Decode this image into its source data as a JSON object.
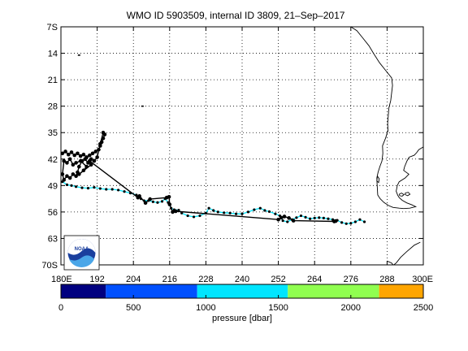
{
  "title": "WMO ID 5903509, internal ID 3809, 21–Sep–2017",
  "map": {
    "lon_range": [
      180,
      300
    ],
    "lat_range": [
      -70,
      -7
    ],
    "lat_ticks": [
      {
        "value": -7,
        "label": "7S"
      },
      {
        "value": -14,
        "label": "14"
      },
      {
        "value": -21,
        "label": "21"
      },
      {
        "value": -28,
        "label": "28"
      },
      {
        "value": -35,
        "label": "35"
      },
      {
        "value": -42,
        "label": "42"
      },
      {
        "value": -49,
        "label": "49"
      },
      {
        "value": -56,
        "label": "56"
      },
      {
        "value": -63,
        "label": "63"
      },
      {
        "value": -70,
        "label": "70S"
      }
    ],
    "lon_ticks": [
      {
        "value": 180,
        "label": "180E"
      },
      {
        "value": 192,
        "label": "192"
      },
      {
        "value": 204,
        "label": "204"
      },
      {
        "value": 216,
        "label": "216"
      },
      {
        "value": 228,
        "label": "228"
      },
      {
        "value": 240,
        "label": "240"
      },
      {
        "value": 252,
        "label": "252"
      },
      {
        "value": 264,
        "label": "264"
      },
      {
        "value": 276,
        "label": "276"
      },
      {
        "value": 288,
        "label": "288"
      },
      {
        "value": 300,
        "label": "300E"
      }
    ],
    "grid": "dotted",
    "logo": {
      "text": "NOAA",
      "placement": "bottom-left"
    }
  },
  "colorbar": {
    "label": "pressure [dbar]",
    "ticks": [
      {
        "value": 0,
        "label": "0"
      },
      {
        "value": 500,
        "label": "500"
      },
      {
        "value": 1000,
        "label": "1000"
      },
      {
        "value": 1500,
        "label": "1500"
      },
      {
        "value": 2000,
        "label": "2000"
      },
      {
        "value": 2500,
        "label": "2500"
      }
    ],
    "range": [
      0,
      2500
    ],
    "bands": [
      {
        "from": 0,
        "to": 310,
        "color": "#000080"
      },
      {
        "from": 310,
        "to": 940,
        "color": "#0050ff"
      },
      {
        "from": 940,
        "to": 1565,
        "color": "#00e5ff"
      },
      {
        "from": 1565,
        "to": 2195,
        "color": "#90ff50"
      },
      {
        "from": 2195,
        "to": 2500,
        "color": "#ffa500"
      }
    ]
  },
  "trajectory": {
    "line_color": "#00e5ff",
    "marker_color": "#000000",
    "points": [
      [
        180.5,
        -48.0
      ],
      [
        182.0,
        -48.8
      ],
      [
        183.5,
        -49.0
      ],
      [
        185.0,
        -49.3
      ],
      [
        187.0,
        -49.6
      ],
      [
        189.0,
        -49.7
      ],
      [
        191.0,
        -49.5
      ],
      [
        193.0,
        -49.8
      ],
      [
        195.0,
        -50.0
      ],
      [
        197.0,
        -50.0
      ],
      [
        199.0,
        -50.2
      ],
      [
        201.0,
        -50.6
      ],
      [
        203.0,
        -51.0
      ],
      [
        205.0,
        -51.5
      ],
      [
        206.5,
        -52.5
      ],
      [
        207.5,
        -53.0
      ],
      [
        209.0,
        -53.0
      ],
      [
        210.5,
        -53.3
      ],
      [
        212.0,
        -53.5
      ],
      [
        213.5,
        -53.2
      ],
      [
        214.5,
        -52.5
      ],
      [
        215.5,
        -53.5
      ],
      [
        216.5,
        -55.0
      ],
      [
        217.5,
        -55.4
      ],
      [
        219.0,
        -55.5
      ],
      [
        220.0,
        -56.3
      ],
      [
        222.0,
        -57.0
      ],
      [
        224.0,
        -57.3
      ],
      [
        226.0,
        -57.0
      ],
      [
        228.0,
        -56.3
      ],
      [
        229.0,
        -55.0
      ],
      [
        230.5,
        -55.6
      ],
      [
        232.0,
        -56.0
      ],
      [
        234.0,
        -56.2
      ],
      [
        236.0,
        -56.3
      ],
      [
        238.0,
        -56.5
      ],
      [
        240.0,
        -56.5
      ],
      [
        242.0,
        -56.0
      ],
      [
        244.0,
        -55.4
      ],
      [
        246.0,
        -55.0
      ],
      [
        247.5,
        -55.6
      ],
      [
        249.0,
        -55.9
      ],
      [
        251.0,
        -56.5
      ],
      [
        252.5,
        -57.0
      ],
      [
        253.5,
        -58.3
      ],
      [
        255.0,
        -58.6
      ],
      [
        256.5,
        -58.0
      ],
      [
        258.0,
        -57.5
      ],
      [
        259.5,
        -57.0
      ],
      [
        261.0,
        -57.4
      ],
      [
        262.5,
        -57.8
      ],
      [
        264.0,
        -57.6
      ],
      [
        265.5,
        -57.5
      ],
      [
        267.0,
        -57.6
      ],
      [
        268.5,
        -57.8
      ],
      [
        270.0,
        -58.0
      ],
      [
        271.5,
        -58.2
      ],
      [
        273.0,
        -58.8
      ],
      [
        274.5,
        -59.1
      ],
      [
        276.0,
        -59.0
      ],
      [
        277.5,
        -58.6
      ],
      [
        279.0,
        -58.0
      ],
      [
        280.5,
        -58.6
      ]
    ],
    "cluster_points": [
      [
        180.5,
        -40.5
      ],
      [
        181.5,
        -40.0
      ],
      [
        182.5,
        -40.8
      ],
      [
        183.5,
        -40.2
      ],
      [
        184.5,
        -41.0
      ],
      [
        185.5,
        -40.5
      ],
      [
        186.5,
        -41.2
      ],
      [
        187.5,
        -40.8
      ],
      [
        188.5,
        -41.5
      ],
      [
        189.5,
        -41.0
      ],
      [
        190.5,
        -40.5
      ],
      [
        191.5,
        -40.0
      ],
      [
        192.5,
        -39.5
      ],
      [
        193.0,
        -38.5
      ],
      [
        193.5,
        -37.5
      ],
      [
        194.0,
        -36.5
      ],
      [
        194.5,
        -35.5
      ],
      [
        194.0,
        -35.0
      ],
      [
        193.0,
        -38.0
      ],
      [
        192.0,
        -41.5
      ],
      [
        191.0,
        -42.5
      ],
      [
        190.0,
        -42.0
      ],
      [
        189.0,
        -43.0
      ],
      [
        188.0,
        -42.0
      ],
      [
        187.0,
        -42.5
      ],
      [
        186.0,
        -44.0
      ],
      [
        185.5,
        -45.5
      ],
      [
        185.0,
        -46.5
      ],
      [
        184.0,
        -46.0
      ],
      [
        183.0,
        -47.0
      ],
      [
        182.0,
        -46.5
      ],
      [
        181.0,
        -47.5
      ],
      [
        180.5,
        -46.0
      ],
      [
        181.0,
        -42.5
      ],
      [
        182.0,
        -43.0
      ],
      [
        183.0,
        -42.0
      ],
      [
        184.0,
        -43.5
      ],
      [
        185.0,
        -43.0
      ],
      [
        186.5,
        -42.5
      ],
      [
        188.5,
        -44.0
      ],
      [
        187.5,
        -45.0
      ],
      [
        186.0,
        -46.0
      ],
      [
        190.0,
        -43.5
      ],
      [
        189.5,
        -42.5
      ],
      [
        205.5,
        -52.2
      ],
      [
        206.0,
        -51.8
      ],
      [
        208.0,
        -53.6
      ],
      [
        209.5,
        -52.6
      ],
      [
        215.0,
        -52.2
      ],
      [
        215.8,
        -52.0
      ],
      [
        216.0,
        -54.0
      ],
      [
        217.0,
        -56.0
      ],
      [
        218.0,
        -55.8
      ],
      [
        252.0,
        -58.0
      ],
      [
        253.0,
        -57.5
      ],
      [
        254.0,
        -57.2
      ],
      [
        255.5,
        -57.6
      ],
      [
        257.0,
        -58.3
      ],
      [
        270.5,
        -58.5
      ],
      [
        271.0,
        -58.4
      ]
    ],
    "isolated_points": [
      [
        186.0,
        -14.5
      ],
      [
        207.0,
        -28.0
      ]
    ]
  },
  "coast": [
    [
      [
        276.0,
        -7.0
      ],
      [
        278.0,
        -8.0
      ],
      [
        280.0,
        -10.0
      ],
      [
        282.0,
        -12.0
      ],
      [
        283.5,
        -14.0
      ],
      [
        285.5,
        -16.5
      ],
      [
        287.5,
        -18.5
      ],
      [
        289.5,
        -20.5
      ],
      [
        289.8,
        -22.5
      ],
      [
        289.5,
        -24.5
      ],
      [
        289.2,
        -26.5
      ],
      [
        288.6,
        -28.5
      ],
      [
        288.4,
        -30.5
      ],
      [
        288.2,
        -32.5
      ],
      [
        288.3,
        -34.5
      ],
      [
        287.5,
        -36.5
      ],
      [
        286.5,
        -38.5
      ],
      [
        286.6,
        -40.5
      ],
      [
        286.3,
        -42.5
      ],
      [
        285.6,
        -44.0
      ],
      [
        285.0,
        -45.5
      ],
      [
        284.6,
        -47.0
      ],
      [
        284.7,
        -48.5
      ],
      [
        284.8,
        -50.0
      ],
      [
        284.9,
        -51.5
      ],
      [
        285.7,
        -52.5
      ],
      [
        287.0,
        -53.5
      ],
      [
        288.5,
        -54.3
      ],
      [
        290.0,
        -54.8
      ],
      [
        292.0,
        -55.0
      ],
      [
        293.5,
        -55.1
      ],
      [
        295.5,
        -55.0
      ],
      [
        297.5,
        -54.6
      ],
      [
        296.2,
        -54.1
      ],
      [
        294.5,
        -53.6
      ],
      [
        293.0,
        -52.9
      ],
      [
        292.0,
        -52.2
      ],
      [
        291.5,
        -51.5
      ],
      [
        291.0,
        -50.5
      ],
      [
        291.4,
        -49.0
      ],
      [
        292.0,
        -48.0
      ],
      [
        294.0,
        -47.0
      ],
      [
        295.2,
        -46.0
      ],
      [
        293.5,
        -45.0
      ],
      [
        293.8,
        -44.0
      ],
      [
        294.6,
        -42.5
      ],
      [
        295.3,
        -41.5
      ],
      [
        297.0,
        -41.0
      ],
      [
        297.8,
        -40.3
      ],
      [
        298.5,
        -39.5
      ],
      [
        300.0,
        -38.8
      ]
    ],
    [
      [
        292.0,
        -51.3
      ],
      [
        292.8,
        -51.0
      ],
      [
        293.6,
        -51.4
      ],
      [
        293.0,
        -51.8
      ],
      [
        292.2,
        -51.7
      ],
      [
        292.0,
        -51.3
      ]
    ],
    [
      [
        294.0,
        -51.0
      ],
      [
        295.0,
        -50.8
      ],
      [
        295.6,
        -51.3
      ],
      [
        294.8,
        -51.7
      ],
      [
        294.0,
        -51.4
      ],
      [
        294.0,
        -51.0
      ]
    ],
    [
      [
        284.8,
        -46.5
      ],
      [
        285.4,
        -47.2
      ],
      [
        285.2,
        -48.2
      ],
      [
        284.6,
        -47.8
      ],
      [
        284.8,
        -46.5
      ]
    ],
    [
      [
        299.0,
        -64.0
      ],
      [
        297.0,
        -64.8
      ],
      [
        294.5,
        -66.5
      ],
      [
        292.5,
        -68.0
      ],
      [
        291.0,
        -69.5
      ],
      [
        290.2,
        -70.0
      ]
    ],
    [
      [
        288.0,
        -69.0
      ],
      [
        289.5,
        -69.5
      ],
      [
        290.0,
        -70.0
      ]
    ]
  ]
}
